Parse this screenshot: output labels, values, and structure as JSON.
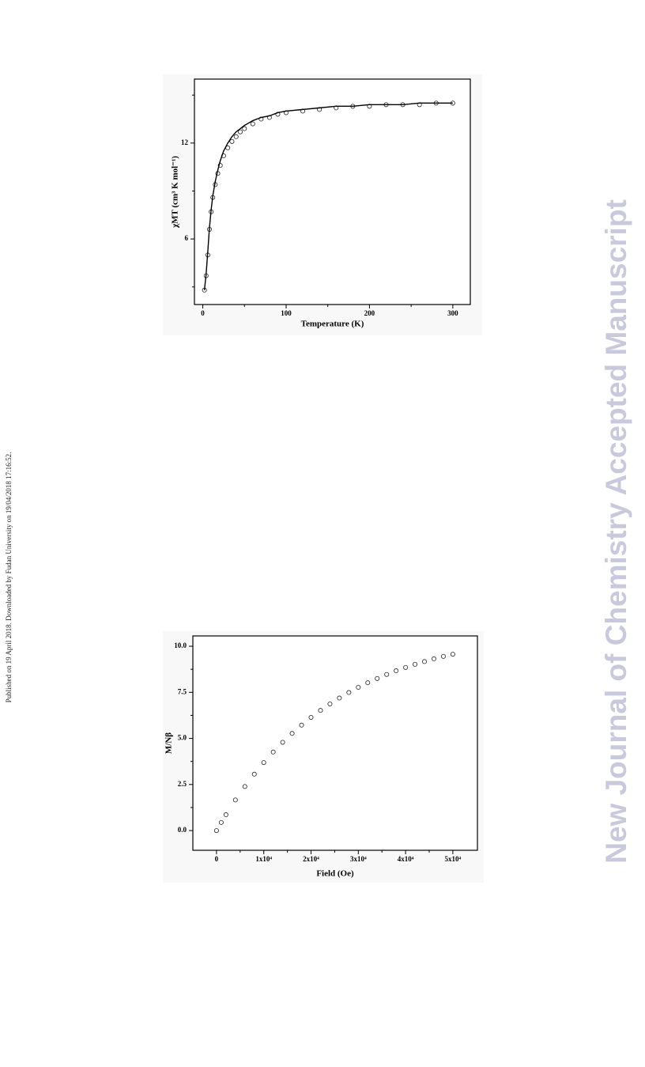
{
  "side_note": "Published on 19 April 2018. Downloaded by Fudan University on 19/04/2018 17:16:52.",
  "watermark": "New Journal of Chemistry Accepted Manuscript",
  "chart_data": [
    {
      "type": "scatter",
      "x_label": "Temperature (K)",
      "y_label": "χMT (cm³ K mol⁻¹)",
      "x": [
        2,
        4,
        6,
        8,
        10,
        12,
        15,
        18,
        21,
        25,
        30,
        35,
        40,
        45,
        50,
        60,
        70,
        80,
        90,
        100,
        120,
        140,
        160,
        180,
        200,
        220,
        240,
        260,
        280,
        300
      ],
      "series": [
        {
          "mode": "markers",
          "color": "#222222",
          "values": [
            2.8,
            3.7,
            5.0,
            6.6,
            7.7,
            8.6,
            9.4,
            10.1,
            10.6,
            11.2,
            11.7,
            12.1,
            12.4,
            12.7,
            12.9,
            13.2,
            13.5,
            13.6,
            13.8,
            13.9,
            14.0,
            14.1,
            14.2,
            14.3,
            14.3,
            14.4,
            14.4,
            14.4,
            14.5,
            14.5
          ]
        },
        {
          "mode": "line",
          "color": "#000000",
          "values": [
            2.8,
            3.8,
            5.2,
            6.7,
            7.8,
            8.7,
            9.6,
            10.3,
            10.9,
            11.5,
            12.0,
            12.4,
            12.7,
            12.9,
            13.1,
            13.4,
            13.6,
            13.7,
            13.9,
            14.0,
            14.1,
            14.2,
            14.3,
            14.3,
            14.4,
            14.4,
            14.4,
            14.5,
            14.5,
            14.5
          ]
        }
      ],
      "xlim": [
        -10,
        321
      ],
      "ylim": [
        1.9,
        16.0
      ],
      "xticks": [
        0,
        100,
        200,
        300
      ],
      "yticks": [
        6,
        12
      ],
      "xminor": [
        50,
        150,
        250
      ],
      "yminor": [
        3,
        9,
        15
      ]
    },
    {
      "type": "scatter",
      "x_label": "Field (Oe)",
      "y_label": "M/Nβ",
      "x": [
        0,
        1000,
        2000,
        4000,
        6000,
        8000,
        10000,
        12000,
        14000,
        16000,
        18000,
        20000,
        22000,
        24000,
        26000,
        28000,
        30000,
        32000,
        34000,
        36000,
        38000,
        40000,
        42000,
        44000,
        46000,
        48000,
        50000
      ],
      "series": [
        {
          "mode": "markers",
          "color": "#222222",
          "values": [
            0.0,
            0.44,
            0.86,
            1.66,
            2.39,
            3.06,
            3.69,
            4.26,
            4.79,
            5.27,
            5.72,
            6.14,
            6.52,
            6.87,
            7.19,
            7.49,
            7.77,
            8.02,
            8.25,
            8.47,
            8.67,
            8.85,
            9.02,
            9.17,
            9.32,
            9.45,
            9.57
          ]
        }
      ],
      "xlim": [
        -5000,
        55200
      ],
      "ylim": [
        -1.07,
        10.56
      ],
      "xticks": [
        0,
        {
          "value": 10000,
          "label": "1x10⁴"
        },
        {
          "value": 20000,
          "label": "2x10⁴"
        },
        {
          "value": 30000,
          "label": "3x10⁴"
        },
        {
          "value": 40000,
          "label": "4x10⁴"
        },
        {
          "value": 50000,
          "label": "5x10⁴"
        }
      ],
      "yticks": [
        {
          "value": 0,
          "label": "0.0"
        },
        2.5,
        {
          "value": 5,
          "label": "5.0"
        },
        7.5,
        {
          "value": 10,
          "label": "10.0"
        }
      ],
      "xminor": [
        5000,
        15000,
        25000,
        35000,
        45000
      ],
      "yminor": [
        1.25,
        3.75,
        6.25,
        8.75
      ]
    }
  ]
}
